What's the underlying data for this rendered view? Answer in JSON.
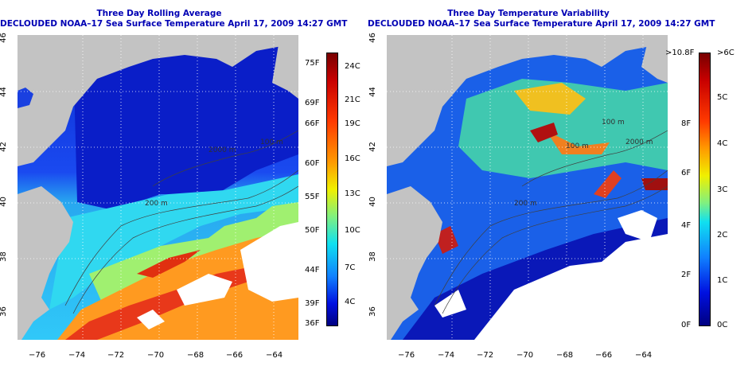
{
  "colors": {
    "land": "#c3c3c3",
    "title": "#0000b4",
    "contour": "#404040"
  },
  "left_map": {
    "title_line1": "Three Day Rolling Average",
    "title_line2": "DECLOUDED NOAA–17 Sea Surface Temperature April 17, 2009 14:27 GMT",
    "contour_labels": [
      "200 m",
      "2000 m",
      "100 m",
      "200 m",
      "2000 m"
    ],
    "colorbar_F": [
      "75F",
      "69F",
      "66F",
      "60F",
      "55F",
      "50F",
      "44F",
      "39F",
      "36F"
    ],
    "colorbar_C": [
      "24C",
      "21C",
      "19C",
      "16C",
      "13C",
      "10C",
      "7C",
      "4C"
    ]
  },
  "right_map": {
    "title_line1": "Three Day Temperature Variability",
    "title_line2": "DECLOUDED NOAA–17 Sea Surface Temperature April 17, 2009 14:27 GMT",
    "contour_labels": [
      "100 m",
      "100 m",
      "2000 m",
      "200 m",
      "200 m"
    ],
    "colorbar_F": [
      ">10.8F",
      "8F",
      "6F",
      "4F",
      "2F",
      "0F"
    ],
    "colorbar_C": [
      ">6C",
      "5C",
      "4C",
      "3C",
      "2C",
      "1C",
      "0C"
    ]
  },
  "x_ticks": [
    "−76",
    "−74",
    "−72",
    "−70",
    "−68",
    "−66",
    "−64"
  ],
  "y_ticks": [
    "46",
    "44",
    "42",
    "40",
    "38",
    "36"
  ]
}
